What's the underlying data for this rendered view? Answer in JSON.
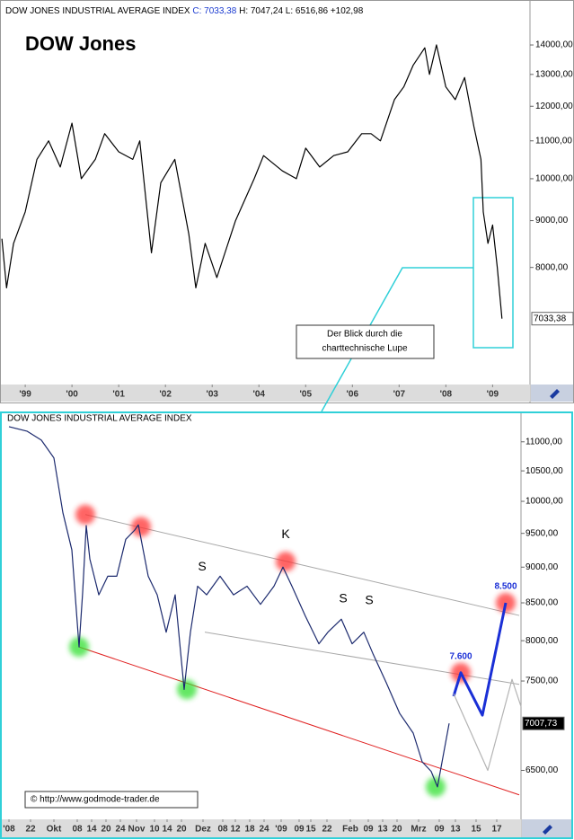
{
  "chart_data": [
    {
      "type": "line",
      "header": {
        "title": "DOW JONES INDUSTRIAL AVERAGE INDEX",
        "close": "C: 7033,38",
        "rest": "H: 7047,24 L: 6516,86 +102,98"
      },
      "title": "DOW Jones",
      "annotation": [
        "Der Blick durch die",
        "charttechnische Lupe"
      ],
      "log": true,
      "xlim": [
        1998.46,
        2009.8
      ],
      "ylim": [
        6000,
        15500
      ],
      "xticks": [
        {
          "value": 1999,
          "label": "'99"
        },
        {
          "value": 2000,
          "label": "'00"
        },
        {
          "value": 2001,
          "label": "'01"
        },
        {
          "value": 2002,
          "label": "'02"
        },
        {
          "value": 2003,
          "label": "'03"
        },
        {
          "value": 2004,
          "label": "'04"
        },
        {
          "value": 2005,
          "label": "'05"
        },
        {
          "value": 2006,
          "label": "'06"
        },
        {
          "value": 2007,
          "label": "'07"
        },
        {
          "value": 2008,
          "label": "'08"
        },
        {
          "value": 2009,
          "label": "'09"
        }
      ],
      "yticks": [
        {
          "value": 8000,
          "label": "8000,00"
        },
        {
          "value": 9000,
          "label": "9000,00"
        },
        {
          "value": 10000,
          "label": "10000,00"
        },
        {
          "value": 11000,
          "label": "11000,00"
        },
        {
          "value": 12000,
          "label": "12000,00"
        },
        {
          "value": 13000,
          "label": "13000,00"
        },
        {
          "value": 14000,
          "label": "14000,00"
        }
      ],
      "series": [
        {
          "color": "#000000",
          "x": [
            1998.5,
            1998.6,
            1998.75,
            1999.0,
            1999.25,
            1999.5,
            1999.75,
            2000.0,
            2000.2,
            2000.5,
            2000.7,
            2001.0,
            2001.3,
            2001.45,
            2001.7,
            2001.9,
            2002.2,
            2002.5,
            2002.65,
            2002.85,
            2003.1,
            2003.5,
            2003.9,
            2004.1,
            2004.5,
            2004.8,
            2005.0,
            2005.3,
            2005.6,
            2005.9,
            2006.2,
            2006.4,
            2006.6,
            2006.9,
            2007.1,
            2007.3,
            2007.55,
            2007.65,
            2007.8,
            2008.0,
            2008.2,
            2008.4,
            2008.6,
            2008.75,
            2008.8,
            2008.9,
            2009.0,
            2009.1,
            2009.2
          ],
          "values": [
            8600,
            7600,
            8500,
            9200,
            10500,
            11000,
            10300,
            11500,
            10000,
            10500,
            11200,
            10700,
            10500,
            11000,
            8300,
            9900,
            10500,
            8700,
            7600,
            8500,
            7800,
            9000,
            10000,
            10600,
            10200,
            10000,
            10800,
            10300,
            10600,
            10700,
            11200,
            11200,
            11000,
            12200,
            12600,
            13300,
            13900,
            13000,
            14000,
            12600,
            12200,
            12900,
            11400,
            10500,
            9200,
            8500,
            8900,
            8000,
            7033.38
          ]
        }
      ],
      "last_price": 7033.38,
      "last_price_label": "7033,38"
    },
    {
      "type": "line",
      "title": "DOW JONES INDUSTRIAL AVERAGE INDEX",
      "source": "© http://www.godmode-trader.de",
      "log": true,
      "xlim": [
        -2.5,
        142.5
      ],
      "ylim": [
        6010,
        11350
      ],
      "xticks": [
        {
          "value": 0,
          "label": "'08"
        },
        {
          "value": 6,
          "label": "22"
        },
        {
          "value": 12.5,
          "label": "Okt"
        },
        {
          "value": 19,
          "label": "08"
        },
        {
          "value": 23,
          "label": "14"
        },
        {
          "value": 27,
          "label": "20"
        },
        {
          "value": 31,
          "label": "24"
        },
        {
          "value": 35.5,
          "label": "Nov"
        },
        {
          "value": 40.5,
          "label": "10"
        },
        {
          "value": 44,
          "label": "14"
        },
        {
          "value": 48,
          "label": "20"
        },
        {
          "value": 54,
          "label": "Dez"
        },
        {
          "value": 59.5,
          "label": "08"
        },
        {
          "value": 63,
          "label": "12"
        },
        {
          "value": 67,
          "label": "18"
        },
        {
          "value": 71,
          "label": "24"
        },
        {
          "value": 75.75,
          "label": "'09"
        },
        {
          "value": 80.75,
          "label": "09"
        },
        {
          "value": 84,
          "label": "15"
        },
        {
          "value": 88.5,
          "label": "22"
        },
        {
          "value": 95,
          "label": "Feb"
        },
        {
          "value": 100,
          "label": "09"
        },
        {
          "value": 104,
          "label": "13"
        },
        {
          "value": 108,
          "label": "20"
        },
        {
          "value": 114,
          "label": "Mrz"
        },
        {
          "value": 119.75,
          "label": "09"
        },
        {
          "value": 124.25,
          "label": "13"
        },
        {
          "value": 130,
          "label": "15"
        },
        {
          "value": 135.75,
          "label": "17"
        }
      ],
      "yticks": [
        {
          "value": 6500,
          "label": "6500,00"
        },
        {
          "value": 7500,
          "label": "7500,00"
        },
        {
          "value": 8000,
          "label": "8000,00"
        },
        {
          "value": 8500,
          "label": "8500,00"
        },
        {
          "value": 9000,
          "label": "9000,00"
        },
        {
          "value": 9500,
          "label": "9500,00"
        },
        {
          "value": 10000,
          "label": "10000,00"
        },
        {
          "value": 10500,
          "label": "10500,00"
        },
        {
          "value": 11000,
          "label": "11000,00"
        }
      ],
      "series": [
        {
          "color": "#1c2a6e",
          "x": [
            0,
            5,
            9,
            12.5,
            15,
            17.5,
            19.5,
            20.5,
            21.5,
            22.5,
            25,
            27.5,
            30,
            32.5,
            35,
            36,
            38.75,
            41.25,
            43.75,
            46.25,
            48.75,
            50.5,
            52.5,
            55,
            58.75,
            62.5,
            66.25,
            70,
            73.75,
            76.25,
            78.75,
            82.5,
            86.25,
            88.75,
            92.5,
            95.5,
            98.75,
            101.25,
            105,
            108.75,
            112.5,
            115,
            117.5,
            119.25,
            121.25,
            122.5
          ],
          "values": [
            11270,
            11190,
            11030,
            10720,
            9820,
            9250,
            7920,
            8640,
            9620,
            9120,
            8610,
            8870,
            8870,
            9410,
            9550,
            9630,
            8870,
            8610,
            8110,
            8610,
            7400,
            8110,
            8730,
            8610,
            8870,
            8610,
            8730,
            8480,
            8730,
            9000,
            8730,
            8320,
            7960,
            8110,
            8280,
            7960,
            8110,
            7840,
            7480,
            7120,
            6900,
            6590,
            6490,
            6330,
            6740,
            7007.73
          ]
        },
        {
          "color": "#1a2fd6",
          "x": [
            123.75,
            125.75,
            131.75,
            138.25
          ],
          "values": [
            7320,
            7600,
            7100,
            8500
          ],
          "value_labels": [
            null,
            "7.600",
            null,
            "8.500"
          ]
        },
        {
          "color": "#b4b4b4",
          "x": [
            123.75,
            133.25,
            140,
            142.5
          ],
          "values": [
            7350,
            6500,
            7520,
            7200
          ]
        }
      ],
      "trendlines": [
        {
          "color": "#a8a8a8",
          "x": [
            21.25,
            142
          ],
          "values": [
            9790,
            8330
          ]
        },
        {
          "color": "#a8a8a8",
          "x": [
            54.5,
            142
          ],
          "values": [
            8110,
            7460
          ]
        },
        {
          "color": "#e02020",
          "x": [
            19.5,
            142
          ],
          "values": [
            7920,
            6250
          ]
        }
      ],
      "markers": [
        {
          "color": "#ff3030",
          "x": [
            21.25,
            36.75,
            77,
            125.75,
            138.25
          ],
          "values": [
            9790,
            9600,
            9080,
            7600,
            8500
          ]
        },
        {
          "color": "#30e030",
          "x": [
            19.5,
            49.5,
            118.75
          ],
          "values": [
            7920,
            7400,
            6330
          ]
        }
      ],
      "pattern_labels": [
        {
          "label": "S",
          "x": 53.75,
          "value": 9000
        },
        {
          "label": "K",
          "x": 77,
          "value": 9480
        },
        {
          "label": "S",
          "x": 93,
          "value": 8550
        },
        {
          "label": "S",
          "x": 100.25,
          "value": 8530
        }
      ],
      "last_price": 7007.73,
      "last_price_label": "7007,73"
    }
  ]
}
